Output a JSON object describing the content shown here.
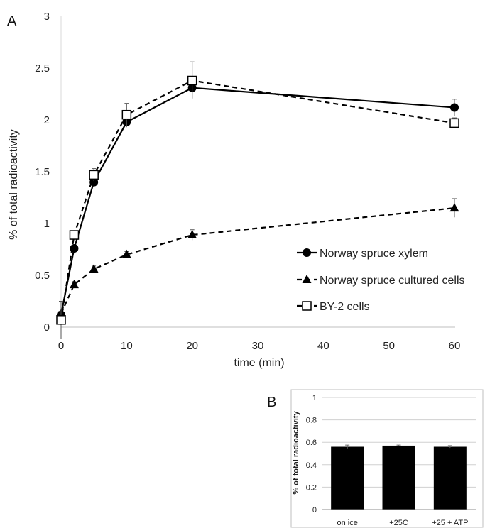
{
  "chart_data": [
    {
      "panel": "A",
      "type": "line",
      "xlabel": "time (min)",
      "ylabel": "% of total radioactivity",
      "xlim": [
        0,
        60
      ],
      "ylim": [
        0,
        3
      ],
      "x_ticks": [
        "0",
        "10",
        "20",
        "30",
        "40",
        "50",
        "60"
      ],
      "y_ticks": [
        "0",
        "0.5",
        "1",
        "1.5",
        "2",
        "2.5",
        "3"
      ],
      "grid": false,
      "legend_position": "right",
      "series": [
        {
          "name": "Norway spruce xylem",
          "marker": "circle",
          "line": "solid",
          "x": [
            0,
            2,
            5,
            10,
            20,
            60
          ],
          "y": [
            0.12,
            0.76,
            1.4,
            1.98,
            2.31,
            2.12
          ],
          "err": [
            0.03,
            0.03,
            0.04,
            0.05,
            0.1,
            0.08
          ]
        },
        {
          "name": "Norway spruce cultured cells",
          "marker": "triangle",
          "line": "dashed",
          "x": [
            0,
            2,
            5,
            10,
            20,
            60
          ],
          "y": [
            0.13,
            0.41,
            0.56,
            0.7,
            0.89,
            1.15
          ],
          "err": [
            0.02,
            0.03,
            0.03,
            0.03,
            0.05,
            0.09
          ]
        },
        {
          "name": "BY-2 cells",
          "marker": "square",
          "line": "dashed",
          "x": [
            0,
            2,
            5,
            10,
            20,
            60
          ],
          "y": [
            0.07,
            0.89,
            1.47,
            2.05,
            2.38,
            1.97
          ],
          "err": [
            0.18,
            0.04,
            0.06,
            0.11,
            0.18,
            0.05
          ]
        }
      ]
    },
    {
      "panel": "B",
      "type": "bar",
      "ylabel": "% of total radioactivity",
      "categories": [
        "on ice",
        "+25C",
        "+25 + ATP"
      ],
      "values": [
        0.56,
        0.57,
        0.56
      ],
      "err": [
        0.015,
        0.005,
        0.01
      ],
      "ylim": [
        0,
        1
      ],
      "y_ticks": [
        "0",
        "0.2",
        "0.4",
        "0.6",
        "0.8",
        "1"
      ],
      "grid": true,
      "bar_color": "#000000"
    }
  ]
}
